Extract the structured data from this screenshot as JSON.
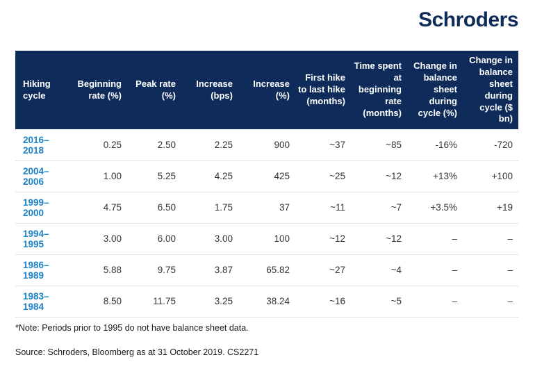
{
  "header": {
    "logo": "Schroders"
  },
  "colors": {
    "brand_navy": "#0e2b5a",
    "cycle_blue": "#1b82c8",
    "body_text": "#333333",
    "row_divider": "#e3e3e3",
    "header_text": "#ffffff",
    "background": "#ffffff"
  },
  "table": {
    "columns": [
      "Hiking cycle",
      "Beginning rate (%)",
      "Peak rate (%)",
      "Increase (bps)",
      "Increase (%)",
      "First hike to last hike (months)",
      "Time spent at beginning rate (months)",
      "Change in balance sheet during cycle (%)",
      "Change in balance sheet during cycle ($ bn)"
    ],
    "rows": [
      {
        "cycle": "2016–2018",
        "values": [
          "0.25",
          "2.50",
          "2.25",
          "900",
          "~37",
          "~85",
          "-16%",
          "-720"
        ]
      },
      {
        "cycle": "2004–2006",
        "values": [
          "1.00",
          "5.25",
          "4.25",
          "425",
          "~25",
          "~12",
          "+13%",
          "+100"
        ]
      },
      {
        "cycle": "1999–2000",
        "values": [
          "4.75",
          "6.50",
          "1.75",
          "37",
          "~11",
          "~7",
          "+3.5%",
          "+19"
        ]
      },
      {
        "cycle": "1994–1995",
        "values": [
          "3.00",
          "6.00",
          "3.00",
          "100",
          "~12",
          "~12",
          "–",
          "–"
        ]
      },
      {
        "cycle": "1986–1989",
        "values": [
          "5.88",
          "9.75",
          "3.87",
          "65.82",
          "~27",
          "~4",
          "–",
          "–"
        ]
      },
      {
        "cycle": "1983–1984",
        "values": [
          "8.50",
          "11.75",
          "3.25",
          "38.24",
          "~16",
          "~5",
          "–",
          "–"
        ]
      }
    ]
  },
  "footer": {
    "note": "*Note: Periods prior to 1995 do not have balance sheet data.",
    "source": "Source: Schroders, Bloomberg as at 31 October 2019. CS2271"
  }
}
